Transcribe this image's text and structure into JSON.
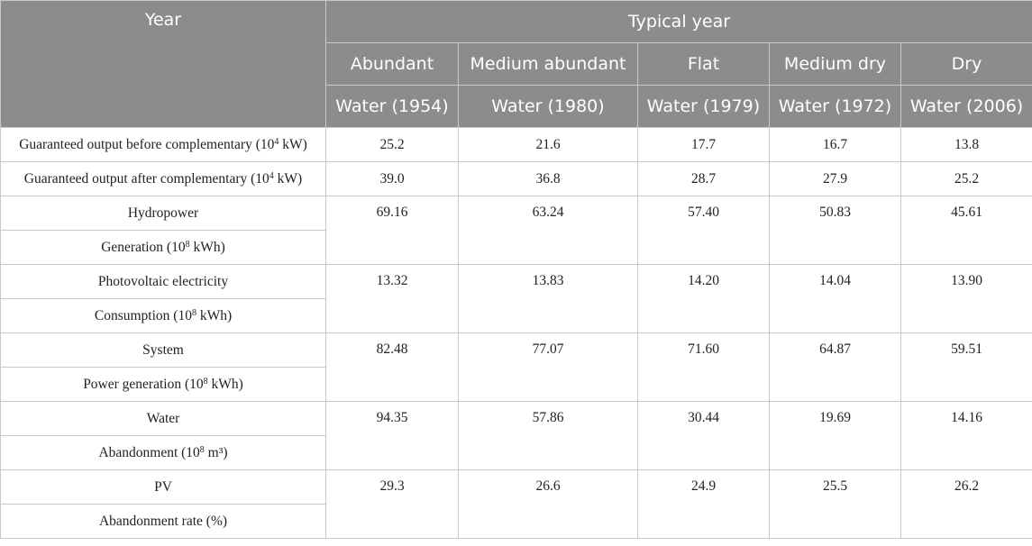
{
  "header": {
    "year_label": "Year",
    "group_label": "Typical year",
    "columns": [
      {
        "line1": "Abundant",
        "line2": "Water (1954)"
      },
      {
        "line1": "Medium abundant",
        "line2": "Water (1980)"
      },
      {
        "line1": "Flat",
        "line2": "Water (1979)"
      },
      {
        "line1": "Medium dry",
        "line2": "Water (1972)"
      },
      {
        "line1": "Dry",
        "line2": "Water (2006)"
      }
    ]
  },
  "rows": [
    {
      "pre": "Guaranteed output before complementary (10",
      "sup": "4",
      "post": " kW)",
      "values": [
        "25.2",
        "21.6",
        "17.7",
        "16.7",
        "13.8"
      ]
    },
    {
      "pre": "Guaranteed output after complementary (10",
      "sup": "4",
      "post": " kW)",
      "values": [
        "39.0",
        "36.8",
        "28.7",
        "27.9",
        "25.2"
      ]
    },
    {
      "line1": "Hydropower",
      "pre": "Generation (10",
      "sup": "8",
      "post": " kWh)",
      "values": [
        "69.16",
        "63.24",
        "57.40",
        "50.83",
        "45.61"
      ]
    },
    {
      "line1": "Photovoltaic electricity",
      "pre": "Consumption (10",
      "sup": "8",
      "post": " kWh)",
      "values": [
        "13.32",
        "13.83",
        "14.20",
        "14.04",
        "13.90"
      ]
    },
    {
      "line1": "System",
      "pre": "Power generation (10",
      "sup": "8",
      "post": " kWh)",
      "values": [
        "82.48",
        "77.07",
        "71.60",
        "64.87",
        "59.51"
      ]
    },
    {
      "line1": "Water",
      "pre": "Abandonment (10",
      "sup": "8",
      "post": " m³)",
      "values": [
        "94.35",
        "57.86",
        "30.44",
        "19.69",
        "14.16"
      ]
    },
    {
      "line1": "PV",
      "pre": "Abandonment rate (%)",
      "sup": "",
      "post": "",
      "values": [
        "29.3",
        "26.6",
        "24.9",
        "25.5",
        "26.2"
      ]
    }
  ]
}
